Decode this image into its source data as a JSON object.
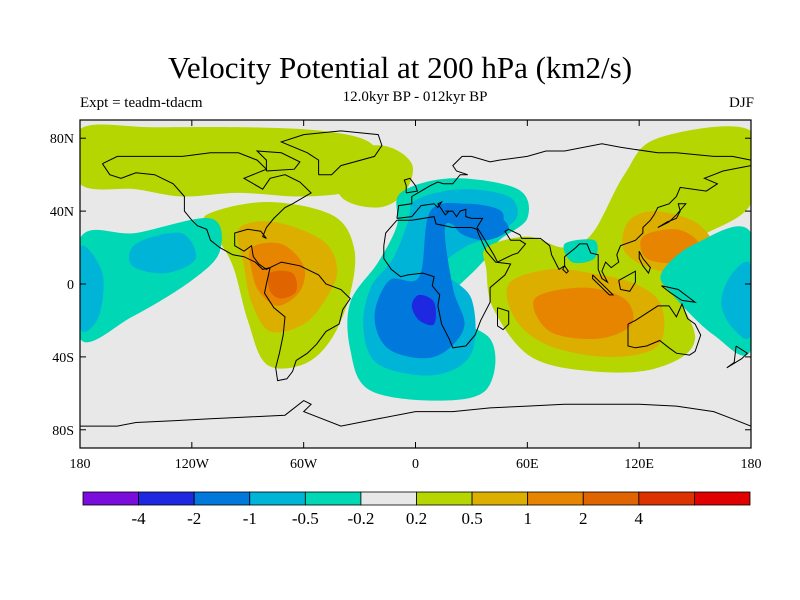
{
  "title": "Velocity Potential at 200 hPa (km2/s)",
  "subtitle": "12.0kyr BP - 012kyr BP",
  "left_label": "Expt = teadm-tdacm",
  "right_label": "DJF",
  "map": {
    "projection": "cylindrical-equidistant",
    "lon_range": [
      -180,
      180
    ],
    "lat_range": [
      -90,
      90
    ],
    "background_color": "#e8e8e8",
    "x_ticks": [
      {
        "lon": -180,
        "label": "180"
      },
      {
        "lon": -120,
        "label": "120W"
      },
      {
        "lon": -60,
        "label": "60W"
      },
      {
        "lon": 0,
        "label": "0"
      },
      {
        "lon": 60,
        "label": "60E"
      },
      {
        "lon": 120,
        "label": "120E"
      },
      {
        "lon": 180,
        "label": "180"
      }
    ],
    "y_ticks": [
      {
        "lat": 80,
        "label": "80N"
      },
      {
        "lat": 40,
        "label": "40N"
      },
      {
        "lat": 0,
        "label": "0"
      },
      {
        "lat": -40,
        "label": "40S"
      },
      {
        "lat": -80,
        "label": "80S"
      }
    ],
    "features": [
      {
        "name": "north-pacific-north-america-positive",
        "level": 0.2,
        "color": "#b5d600",
        "points": [
          [
            -180,
            85
          ],
          [
            -140,
            86
          ],
          [
            -90,
            86
          ],
          [
            -50,
            84
          ],
          [
            -25,
            78
          ],
          [
            -20,
            65
          ],
          [
            -30,
            52
          ],
          [
            -60,
            48
          ],
          [
            -95,
            50
          ],
          [
            -125,
            48
          ],
          [
            -150,
            52
          ],
          [
            -180,
            55
          ]
        ]
      },
      {
        "name": "north-atlantic-positive",
        "level": 0.2,
        "color": "#b5d600",
        "points": [
          [
            -42,
            70
          ],
          [
            -18,
            76
          ],
          [
            -2,
            66
          ],
          [
            -6,
            50
          ],
          [
            -20,
            42
          ],
          [
            -40,
            48
          ]
        ]
      },
      {
        "name": "americas-positive-broad",
        "level": 0.2,
        "color": "#b5d600",
        "points": [
          [
            -112,
            38
          ],
          [
            -80,
            45
          ],
          [
            -45,
            38
          ],
          [
            -33,
            20
          ],
          [
            -35,
            -5
          ],
          [
            -45,
            -30
          ],
          [
            -60,
            -44
          ],
          [
            -80,
            -44
          ],
          [
            -90,
            -20
          ],
          [
            -98,
            10
          ],
          [
            -108,
            28
          ]
        ]
      },
      {
        "name": "americas-positive-0.5",
        "level": 0.5,
        "color": "#dcae00",
        "points": [
          [
            -95,
            30
          ],
          [
            -76,
            34
          ],
          [
            -50,
            24
          ],
          [
            -42,
            8
          ],
          [
            -48,
            -8
          ],
          [
            -60,
            -22
          ],
          [
            -78,
            -26
          ],
          [
            -88,
            -10
          ],
          [
            -92,
            10
          ]
        ]
      },
      {
        "name": "americas-positive-1",
        "level": 1,
        "color": "#e78500",
        "points": [
          [
            -88,
            20
          ],
          [
            -72,
            22
          ],
          [
            -60,
            10
          ],
          [
            -62,
            -4
          ],
          [
            -74,
            -12
          ],
          [
            -84,
            -4
          ],
          [
            -88,
            8
          ]
        ]
      },
      {
        "name": "americas-positive-2",
        "level": 2,
        "color": "#e06400",
        "points": [
          [
            -78,
            6
          ],
          [
            -66,
            6
          ],
          [
            -64,
            -4
          ],
          [
            -72,
            -8
          ],
          [
            -78,
            -4
          ]
        ]
      },
      {
        "name": "east-pacific-negative",
        "level": -0.2,
        "color": "#00d7b5",
        "points": [
          [
            -180,
            25
          ],
          [
            -150,
            28
          ],
          [
            -110,
            36
          ],
          [
            -105,
            18
          ],
          [
            -120,
            2
          ],
          [
            -152,
            -18
          ],
          [
            -180,
            -30
          ]
        ]
      },
      {
        "name": "east-pacific-negative-0.5",
        "level": -0.5,
        "color": "#00b4d8",
        "points": [
          [
            -150,
            22
          ],
          [
            -126,
            28
          ],
          [
            -118,
            14
          ],
          [
            -134,
            6
          ],
          [
            -152,
            10
          ]
        ]
      },
      {
        "name": "dateline-negative-0.5",
        "level": -0.5,
        "color": "#00b4d8",
        "points": [
          [
            -180,
            20
          ],
          [
            -168,
            6
          ],
          [
            -170,
            -18
          ],
          [
            -180,
            -24
          ]
        ]
      },
      {
        "name": "atlantic-africa-negative",
        "level": -0.2,
        "color": "#00d7b5",
        "points": [
          [
            -8,
            50
          ],
          [
            20,
            58
          ],
          [
            55,
            52
          ],
          [
            60,
            36
          ],
          [
            45,
            24
          ],
          [
            36,
            12
          ],
          [
            22,
            -2
          ],
          [
            8,
            -14
          ],
          [
            40,
            -30
          ],
          [
            38,
            -58
          ],
          [
            10,
            -64
          ],
          [
            -25,
            -58
          ],
          [
            -35,
            -36
          ],
          [
            -35,
            -10
          ],
          [
            -20,
            12
          ],
          [
            -10,
            32
          ]
        ]
      },
      {
        "name": "atlantic-africa-negative-0.5",
        "level": -0.5,
        "color": "#00b4d8",
        "points": [
          [
            0,
            46
          ],
          [
            24,
            52
          ],
          [
            50,
            48
          ],
          [
            54,
            36
          ],
          [
            40,
            26
          ],
          [
            26,
            20
          ],
          [
            14,
            8
          ],
          [
            30,
            -8
          ],
          [
            30,
            -38
          ],
          [
            10,
            -50
          ],
          [
            -20,
            -44
          ],
          [
            -28,
            -24
          ],
          [
            -24,
            -2
          ],
          [
            -12,
            14
          ],
          [
            -4,
            34
          ]
        ]
      },
      {
        "name": "atlantic-africa-negative-1",
        "level": -1,
        "color": "#0078dc",
        "points": [
          [
            8,
            40
          ],
          [
            28,
            44
          ],
          [
            46,
            40
          ],
          [
            44,
            30
          ],
          [
            28,
            28
          ],
          [
            16,
            32
          ],
          [
            20,
            -2
          ],
          [
            26,
            -24
          ],
          [
            10,
            -40
          ],
          [
            -14,
            -36
          ],
          [
            -22,
            -18
          ],
          [
            -14,
            2
          ],
          [
            2,
            4
          ]
        ]
      },
      {
        "name": "atlantic-negative-2",
        "level": -2,
        "color": "#1e28e0",
        "points": [
          [
            2,
            -6
          ],
          [
            10,
            -10
          ],
          [
            10,
            -22
          ],
          [
            2,
            -20
          ],
          [
            -2,
            -12
          ]
        ]
      },
      {
        "name": "mideast-negative-2",
        "level": -1,
        "color": "#0078dc",
        "points": [
          [
            22,
            36
          ],
          [
            42,
            38
          ],
          [
            50,
            30
          ],
          [
            38,
            24
          ],
          [
            24,
            28
          ]
        ]
      },
      {
        "name": "indian-ocean-asia-positive",
        "level": 0.2,
        "color": "#b5d600",
        "points": [
          [
            38,
            20
          ],
          [
            60,
            26
          ],
          [
            80,
            20
          ],
          [
            95,
            28
          ],
          [
            112,
            60
          ],
          [
            130,
            80
          ],
          [
            180,
            84
          ],
          [
            180,
            44
          ],
          [
            150,
            24
          ],
          [
            136,
            6
          ],
          [
            150,
            -30
          ],
          [
            130,
            -46
          ],
          [
            96,
            -48
          ],
          [
            62,
            -40
          ],
          [
            42,
            -14
          ],
          [
            38,
            8
          ]
        ]
      },
      {
        "name": "indian-ocean-positive-0.5",
        "level": 0.5,
        "color": "#dcae00",
        "points": [
          [
            50,
            0
          ],
          [
            72,
            8
          ],
          [
            94,
            6
          ],
          [
            118,
            0
          ],
          [
            132,
            -12
          ],
          [
            130,
            -34
          ],
          [
            104,
            -40
          ],
          [
            72,
            -34
          ],
          [
            54,
            -20
          ]
        ]
      },
      {
        "name": "indian-ocean-positive-1",
        "level": 1,
        "color": "#e78500",
        "points": [
          [
            64,
            -8
          ],
          [
            90,
            -2
          ],
          [
            112,
            -8
          ],
          [
            116,
            -22
          ],
          [
            98,
            -30
          ],
          [
            72,
            -26
          ]
        ]
      },
      {
        "name": "east-asia-positive-0.5",
        "level": 0.5,
        "color": "#dcae00",
        "points": [
          [
            114,
            34
          ],
          [
            128,
            40
          ],
          [
            150,
            34
          ],
          [
            160,
            20
          ],
          [
            150,
            6
          ],
          [
            128,
            8
          ],
          [
            112,
            18
          ]
        ]
      },
      {
        "name": "east-asia-positive-1",
        "level": 1,
        "color": "#e78500",
        "points": [
          [
            122,
            26
          ],
          [
            140,
            30
          ],
          [
            152,
            22
          ],
          [
            142,
            12
          ],
          [
            124,
            14
          ]
        ]
      },
      {
        "name": "west-pacific-negative",
        "level": -0.2,
        "color": "#00d7b5",
        "points": [
          [
            150,
            22
          ],
          [
            180,
            28
          ],
          [
            180,
            -36
          ],
          [
            160,
            -28
          ],
          [
            138,
            -6
          ],
          [
            132,
            6
          ]
        ]
      },
      {
        "name": "west-pacific-negative-0.5",
        "level": -0.5,
        "color": "#00b4d8",
        "points": [
          [
            170,
            6
          ],
          [
            180,
            10
          ],
          [
            180,
            -28
          ],
          [
            170,
            -24
          ],
          [
            164,
            -10
          ]
        ]
      },
      {
        "name": "arabian-sea-negative",
        "level": -0.2,
        "color": "#00d7b5",
        "points": [
          [
            80,
            22
          ],
          [
            96,
            24
          ],
          [
            96,
            14
          ],
          [
            84,
            12
          ]
        ]
      }
    ]
  },
  "coastline_note": "",
  "colorbar": {
    "colors": [
      "#7b0ddc",
      "#1e28e0",
      "#0078dc",
      "#00b4d8",
      "#00d7b5",
      "#e8e8e8",
      "#b5d600",
      "#dcae00",
      "#e78500",
      "#e06400",
      "#dc3200",
      "#e00000"
    ],
    "labels": [
      "-4",
      "-2",
      "-1",
      "-0.5",
      "-0.2",
      "0.2",
      "0.5",
      "1",
      "2",
      "4"
    ]
  }
}
